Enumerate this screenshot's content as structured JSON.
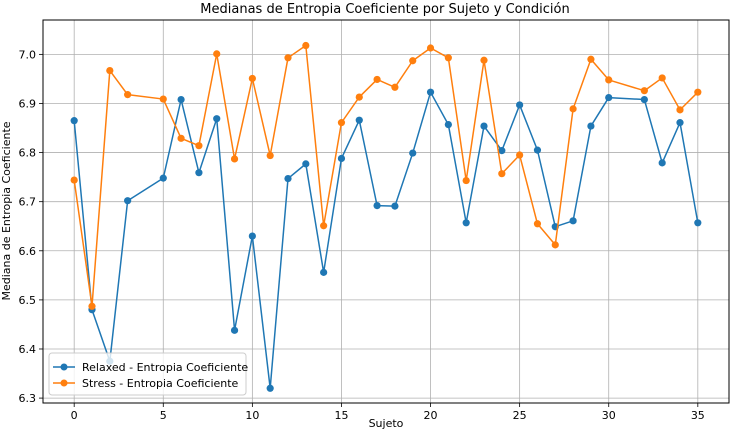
{
  "chart_data": {
    "type": "line",
    "title": "Medianas de Entropia Coeficiente por Sujeto y Condición",
    "xlabel": "Sujeto",
    "ylabel": "Mediana de Entropia Coeficiente",
    "xlim": [
      -1.75,
      36.75
    ],
    "ylim": [
      6.29,
      7.07
    ],
    "xticks": [
      0,
      5,
      10,
      15,
      20,
      25,
      30,
      35
    ],
    "yticks": [
      6.3,
      6.4,
      6.5,
      6.6,
      6.7,
      6.8,
      6.9,
      7.0
    ],
    "ytick_labels": [
      "6.3",
      "6.4",
      "6.5",
      "6.6",
      "6.7",
      "6.8",
      "6.9",
      "7.0"
    ],
    "grid": true,
    "legend_position": "lower-left",
    "series": [
      {
        "name": "Relaxed - Entropia Coeficiente",
        "color": "#1f77b4",
        "x": [
          0,
          1,
          2,
          3,
          5,
          6,
          7,
          8,
          9,
          10,
          11,
          12,
          13,
          14,
          15,
          16,
          17,
          18,
          19,
          20,
          21,
          22,
          23,
          24,
          25,
          26,
          27,
          28,
          29,
          30,
          32,
          33,
          34,
          35
        ],
        "y": [
          6.865,
          6.48,
          6.375,
          6.702,
          6.748,
          6.908,
          6.759,
          6.869,
          6.438,
          6.63,
          6.32,
          6.747,
          6.777,
          6.556,
          6.788,
          6.866,
          6.692,
          6.691,
          6.799,
          6.923,
          6.857,
          6.657,
          6.854,
          6.804,
          6.897,
          6.805,
          6.649,
          6.661,
          6.854,
          6.912,
          6.908,
          6.779,
          6.861,
          6.657
        ]
      },
      {
        "name": "Stress - Entropia Coeficiente",
        "color": "#ff7f0e",
        "x": [
          0,
          1,
          2,
          3,
          5,
          6,
          7,
          8,
          9,
          10,
          11,
          12,
          13,
          14,
          15,
          16,
          17,
          18,
          19,
          20,
          21,
          22,
          23,
          24,
          25,
          26,
          27,
          28,
          29,
          30,
          32,
          33,
          34,
          35
        ],
        "y": [
          6.744,
          6.487,
          6.967,
          6.918,
          6.909,
          6.829,
          6.814,
          7.001,
          6.787,
          6.951,
          6.794,
          6.993,
          7.018,
          6.651,
          6.861,
          6.913,
          6.949,
          6.933,
          6.987,
          7.013,
          6.993,
          6.743,
          6.988,
          6.757,
          6.795,
          6.655,
          6.612,
          6.889,
          6.99,
          6.948,
          6.926,
          6.952,
          6.887,
          6.923
        ]
      }
    ]
  }
}
